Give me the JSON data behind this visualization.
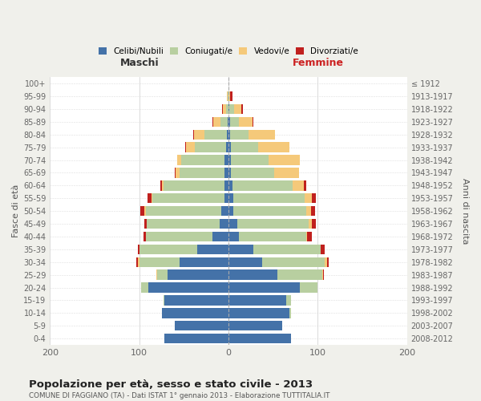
{
  "age_groups": [
    "0-4",
    "5-9",
    "10-14",
    "15-19",
    "20-24",
    "25-29",
    "30-34",
    "35-39",
    "40-44",
    "45-49",
    "50-54",
    "55-59",
    "60-64",
    "65-69",
    "70-74",
    "75-79",
    "80-84",
    "85-89",
    "90-94",
    "95-99",
    "100+"
  ],
  "birth_years": [
    "2008-2012",
    "2003-2007",
    "1998-2002",
    "1993-1997",
    "1988-1992",
    "1983-1987",
    "1978-1982",
    "1973-1977",
    "1968-1972",
    "1963-1967",
    "1958-1962",
    "1953-1957",
    "1948-1952",
    "1943-1947",
    "1938-1942",
    "1933-1937",
    "1928-1932",
    "1923-1927",
    "1918-1922",
    "1913-1917",
    "≤ 1912"
  ],
  "maschi_celibi": [
    72,
    60,
    75,
    72,
    90,
    68,
    55,
    35,
    18,
    10,
    8,
    5,
    5,
    5,
    5,
    3,
    2,
    1,
    0,
    0,
    0
  ],
  "maschi_coniugati": [
    0,
    0,
    0,
    1,
    8,
    12,
    45,
    65,
    75,
    82,
    85,
    80,
    68,
    50,
    48,
    35,
    25,
    8,
    3,
    1,
    0
  ],
  "maschi_vedovi": [
    0,
    0,
    0,
    0,
    0,
    1,
    2,
    0,
    0,
    0,
    1,
    1,
    2,
    4,
    5,
    10,
    12,
    8,
    3,
    1,
    0
  ],
  "maschi_divorziati": [
    0,
    0,
    0,
    0,
    0,
    0,
    1,
    2,
    2,
    2,
    5,
    5,
    1,
    1,
    0,
    1,
    1,
    1,
    1,
    0,
    0
  ],
  "femmine_nubili": [
    70,
    60,
    68,
    65,
    80,
    55,
    38,
    28,
    12,
    10,
    5,
    5,
    4,
    3,
    3,
    3,
    2,
    2,
    1,
    0,
    0
  ],
  "femmine_coniugate": [
    0,
    0,
    2,
    5,
    20,
    50,
    70,
    75,
    75,
    80,
    82,
    80,
    68,
    48,
    42,
    30,
    20,
    10,
    5,
    0,
    0
  ],
  "femmine_vedove": [
    0,
    0,
    0,
    0,
    0,
    1,
    2,
    0,
    1,
    3,
    5,
    8,
    12,
    28,
    35,
    35,
    30,
    15,
    8,
    2,
    0
  ],
  "femmine_divorziate": [
    0,
    0,
    0,
    0,
    0,
    1,
    2,
    5,
    5,
    5,
    5,
    5,
    3,
    0,
    0,
    0,
    0,
    1,
    2,
    2,
    0
  ],
  "colors": {
    "celibi": "#4472a8",
    "coniugati": "#b8cfa0",
    "vedovi": "#f5c97a",
    "divorziati": "#c0201e"
  },
  "xlim": 200,
  "title": "Popolazione per età, sesso e stato civile - 2013",
  "subtitle": "COMUNE DI FAGGIANO (TA) - Dati ISTAT 1° gennaio 2013 - Elaborazione TUTTITALIA.IT",
  "ylabel_left": "Fasce di età",
  "ylabel_right": "Anni di nascita",
  "label_maschi": "Maschi",
  "label_femmine": "Femmine",
  "bg_color": "#f0f0eb",
  "plot_bg": "#ffffff",
  "legend": [
    "Celibi/Nubili",
    "Coniugati/e",
    "Vedovi/e",
    "Divorziati/e"
  ]
}
